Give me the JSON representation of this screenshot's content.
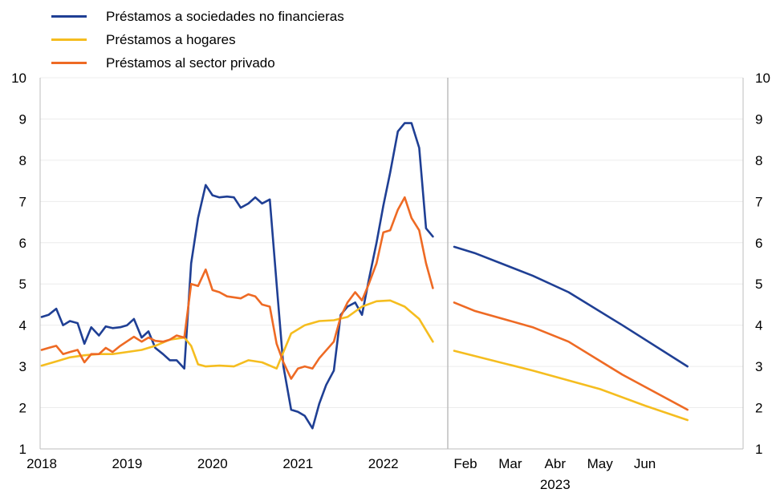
{
  "chart_data": {
    "type": "line",
    "legend": [
      {
        "name": "Préstamos a sociedades no financieras",
        "color": "#1f3f94"
      },
      {
        "name": "Préstamos a hogares",
        "color": "#f5bd1f"
      },
      {
        "name": "Préstamos al sector privado",
        "color": "#ee6a24"
      }
    ],
    "ylim": [
      1,
      10
    ],
    "yticks": [
      "1",
      "2",
      "3",
      "4",
      "5",
      "6",
      "7",
      "8",
      "9",
      "10"
    ],
    "panels": [
      {
        "name": "historical",
        "xlim": [
          2018,
          2022.67
        ],
        "xticks": [
          {
            "v": 2018,
            "label": "2018"
          },
          {
            "v": 2019,
            "label": "2019"
          },
          {
            "v": 2020,
            "label": "2020"
          },
          {
            "v": 2021,
            "label": "2021"
          },
          {
            "v": 2022,
            "label": "2022"
          }
        ],
        "series": [
          {
            "name": "Préstamos a sociedades no financieras",
            "color": "#1f3f94",
            "points": [
              [
                2018.0,
                4.2
              ],
              [
                2018.08,
                4.25
              ],
              [
                2018.17,
                4.4
              ],
              [
                2018.25,
                4.0
              ],
              [
                2018.33,
                4.1
              ],
              [
                2018.42,
                4.05
              ],
              [
                2018.5,
                3.55
              ],
              [
                2018.58,
                3.95
              ],
              [
                2018.67,
                3.75
              ],
              [
                2018.75,
                3.97
              ],
              [
                2018.83,
                3.93
              ],
              [
                2018.92,
                3.95
              ],
              [
                2019.0,
                4.0
              ],
              [
                2019.08,
                4.15
              ],
              [
                2019.17,
                3.7
              ],
              [
                2019.25,
                3.85
              ],
              [
                2019.33,
                3.45
              ],
              [
                2019.42,
                3.3
              ],
              [
                2019.5,
                3.15
              ],
              [
                2019.58,
                3.15
              ],
              [
                2019.67,
                2.95
              ],
              [
                2019.75,
                5.5
              ],
              [
                2019.83,
                6.6
              ],
              [
                2019.92,
                7.4
              ],
              [
                2020.0,
                7.15
              ],
              [
                2020.08,
                7.1
              ],
              [
                2020.17,
                7.12
              ],
              [
                2020.25,
                7.1
              ],
              [
                2020.33,
                6.85
              ],
              [
                2020.42,
                6.95
              ],
              [
                2020.5,
                7.1
              ],
              [
                2020.58,
                6.95
              ],
              [
                2020.67,
                7.05
              ],
              [
                2020.75,
                5.0
              ],
              [
                2020.83,
                3.0
              ],
              [
                2020.92,
                1.95
              ],
              [
                2021.0,
                1.9
              ],
              [
                2021.08,
                1.8
              ],
              [
                2021.17,
                1.5
              ],
              [
                2021.25,
                2.1
              ],
              [
                2021.33,
                2.55
              ],
              [
                2021.42,
                2.9
              ],
              [
                2021.5,
                4.25
              ],
              [
                2021.58,
                4.45
              ],
              [
                2021.67,
                4.55
              ],
              [
                2021.75,
                4.25
              ],
              [
                2021.83,
                5.1
              ],
              [
                2021.92,
                6.0
              ],
              [
                2022.0,
                6.9
              ],
              [
                2022.08,
                7.7
              ],
              [
                2022.17,
                8.7
              ],
              [
                2022.25,
                8.9
              ],
              [
                2022.33,
                8.9
              ],
              [
                2022.42,
                8.3
              ],
              [
                2022.5,
                6.35
              ],
              [
                2022.58,
                6.15
              ]
            ]
          },
          {
            "name": "Préstamos a hogares",
            "color": "#f5bd1f",
            "points": [
              [
                2018.0,
                3.02
              ],
              [
                2018.17,
                3.12
              ],
              [
                2018.33,
                3.22
              ],
              [
                2018.5,
                3.27
              ],
              [
                2018.67,
                3.3
              ],
              [
                2018.83,
                3.3
              ],
              [
                2019.0,
                3.35
              ],
              [
                2019.17,
                3.4
              ],
              [
                2019.33,
                3.5
              ],
              [
                2019.5,
                3.65
              ],
              [
                2019.67,
                3.7
              ],
              [
                2019.75,
                3.5
              ],
              [
                2019.83,
                3.05
              ],
              [
                2019.92,
                3.0
              ],
              [
                2020.08,
                3.02
              ],
              [
                2020.25,
                3.0
              ],
              [
                2020.42,
                3.15
              ],
              [
                2020.58,
                3.1
              ],
              [
                2020.75,
                2.95
              ],
              [
                2020.83,
                3.35
              ],
              [
                2020.92,
                3.8
              ],
              [
                2021.08,
                4.0
              ],
              [
                2021.25,
                4.1
              ],
              [
                2021.42,
                4.12
              ],
              [
                2021.58,
                4.2
              ],
              [
                2021.75,
                4.45
              ],
              [
                2021.92,
                4.58
              ],
              [
                2022.08,
                4.6
              ],
              [
                2022.25,
                4.45
              ],
              [
                2022.42,
                4.15
              ],
              [
                2022.58,
                3.6
              ]
            ]
          },
          {
            "name": "Préstamos al sector privado",
            "color": "#ee6a24",
            "points": [
              [
                2018.0,
                3.4
              ],
              [
                2018.08,
                3.45
              ],
              [
                2018.17,
                3.5
              ],
              [
                2018.25,
                3.3
              ],
              [
                2018.33,
                3.35
              ],
              [
                2018.42,
                3.4
              ],
              [
                2018.5,
                3.1
              ],
              [
                2018.58,
                3.3
              ],
              [
                2018.67,
                3.3
              ],
              [
                2018.75,
                3.45
              ],
              [
                2018.83,
                3.35
              ],
              [
                2018.92,
                3.5
              ],
              [
                2019.08,
                3.72
              ],
              [
                2019.17,
                3.6
              ],
              [
                2019.25,
                3.7
              ],
              [
                2019.33,
                3.62
              ],
              [
                2019.42,
                3.6
              ],
              [
                2019.5,
                3.65
              ],
              [
                2019.58,
                3.75
              ],
              [
                2019.67,
                3.7
              ],
              [
                2019.75,
                5.0
              ],
              [
                2019.83,
                4.95
              ],
              [
                2019.92,
                5.35
              ],
              [
                2020.0,
                4.85
              ],
              [
                2020.08,
                4.8
              ],
              [
                2020.17,
                4.7
              ],
              [
                2020.33,
                4.65
              ],
              [
                2020.42,
                4.75
              ],
              [
                2020.5,
                4.7
              ],
              [
                2020.58,
                4.5
              ],
              [
                2020.67,
                4.45
              ],
              [
                2020.75,
                3.55
              ],
              [
                2020.83,
                3.1
              ],
              [
                2020.92,
                2.7
              ],
              [
                2021.0,
                2.95
              ],
              [
                2021.08,
                3.0
              ],
              [
                2021.17,
                2.95
              ],
              [
                2021.25,
                3.2
              ],
              [
                2021.42,
                3.6
              ],
              [
                2021.5,
                4.2
              ],
              [
                2021.58,
                4.55
              ],
              [
                2021.67,
                4.8
              ],
              [
                2021.75,
                4.6
              ],
              [
                2021.83,
                5.0
              ],
              [
                2021.92,
                5.5
              ],
              [
                2022.0,
                6.25
              ],
              [
                2022.08,
                6.3
              ],
              [
                2022.17,
                6.8
              ],
              [
                2022.25,
                7.1
              ],
              [
                2022.33,
                6.6
              ],
              [
                2022.42,
                6.3
              ],
              [
                2022.5,
                5.5
              ],
              [
                2022.58,
                4.9
              ]
            ]
          }
        ]
      },
      {
        "name": "projection",
        "xlim": [
          0.75,
          6.6
        ],
        "xlabel": "2023",
        "xticks": [
          {
            "v": 1,
            "label": "Feb"
          },
          {
            "v": 2,
            "label": "Mar"
          },
          {
            "v": 3,
            "label": "Abr"
          },
          {
            "v": 4,
            "label": "May"
          },
          {
            "v": 5,
            "label": "Jun"
          }
        ],
        "series": [
          {
            "name": "Préstamos a sociedades no financieras",
            "color": "#1f3f94",
            "points": [
              [
                0.75,
                5.9
              ],
              [
                1.2,
                5.75
              ],
              [
                2.5,
                5.2
              ],
              [
                3.3,
                4.8
              ],
              [
                4.5,
                4.0
              ],
              [
                5.95,
                3.0
              ]
            ]
          },
          {
            "name": "Préstamos a hogares",
            "color": "#f5bd1f",
            "points": [
              [
                0.75,
                3.38
              ],
              [
                2.5,
                2.9
              ],
              [
                4.0,
                2.45
              ],
              [
                5.0,
                2.05
              ],
              [
                5.95,
                1.7
              ]
            ]
          },
          {
            "name": "Préstamos al sector privado",
            "color": "#ee6a24",
            "points": [
              [
                0.75,
                4.55
              ],
              [
                1.2,
                4.35
              ],
              [
                2.5,
                3.95
              ],
              [
                3.3,
                3.6
              ],
              [
                4.5,
                2.8
              ],
              [
                5.95,
                1.95
              ]
            ]
          }
        ]
      }
    ]
  }
}
